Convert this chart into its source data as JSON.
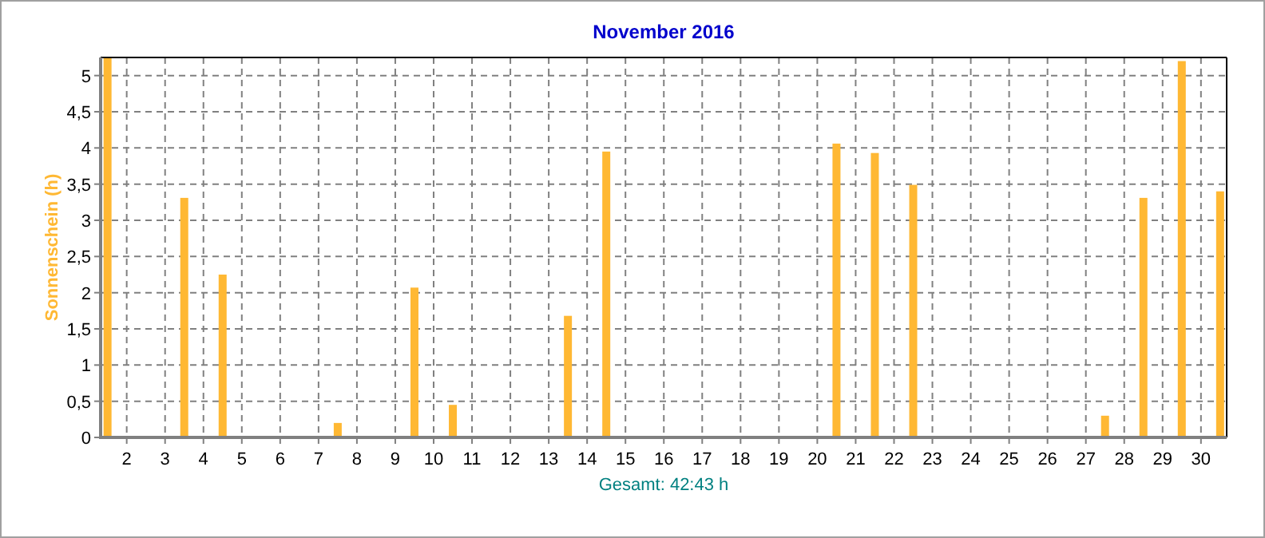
{
  "chart_data": {
    "type": "bar",
    "title": "November 2016",
    "ylabel": "Sonnenschein  (h)",
    "xlabel": "Gesamt: 42:43 h",
    "x": [
      1.5,
      2.5,
      3.5,
      4.5,
      5.5,
      6.5,
      7.5,
      8.5,
      9.5,
      10.5,
      11.5,
      12.5,
      13.5,
      14.5,
      15.5,
      16.5,
      17.5,
      18.5,
      19.5,
      20.5,
      21.5,
      22.5,
      23.5,
      24.5,
      25.5,
      26.5,
      27.5,
      28.5,
      29.5,
      30.5
    ],
    "values": [
      5.25,
      0,
      3.31,
      2.25,
      0,
      0,
      0.2,
      0,
      2.07,
      0.45,
      0,
      0,
      1.68,
      3.95,
      0,
      0,
      0,
      0,
      0,
      4.06,
      3.93,
      3.49,
      0,
      0,
      0,
      0,
      0.3,
      3.31,
      5.2,
      3.4
    ],
    "color": "#ffb833",
    "xlim": [
      1.32,
      30.67
    ],
    "xticks": [
      2,
      3,
      4,
      5,
      6,
      7,
      8,
      9,
      10,
      11,
      12,
      13,
      14,
      15,
      16,
      17,
      18,
      19,
      20,
      21,
      22,
      23,
      24,
      25,
      26,
      27,
      28,
      29,
      30
    ],
    "ylim": [
      0,
      5.25
    ],
    "yticks": [
      0,
      {
        "value": 0.5,
        "label": "0,5"
      },
      1,
      {
        "value": 1.5,
        "label": "1,5"
      },
      2,
      {
        "value": 2.5,
        "label": "2,5"
      },
      3,
      {
        "value": 3.5,
        "label": "3,5"
      },
      4,
      {
        "value": 4.5,
        "label": "4,5"
      },
      5
    ],
    "grid": true
  }
}
